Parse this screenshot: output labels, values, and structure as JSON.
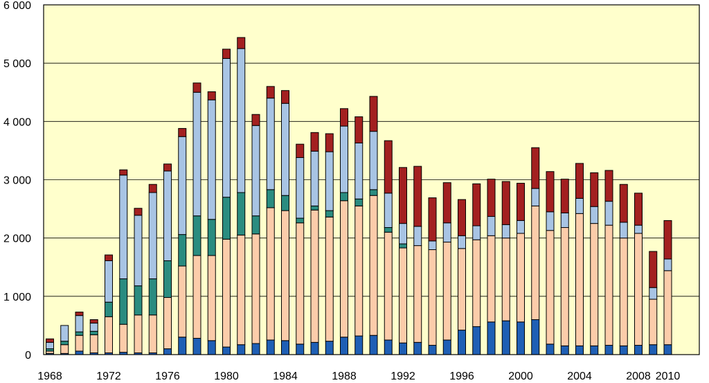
{
  "chart_data": {
    "type": "bar",
    "stacked": true,
    "title": "",
    "xlabel": "",
    "ylabel": "",
    "ylim": [
      0,
      6000
    ],
    "y_ticks": [
      0,
      1000,
      2000,
      3000,
      4000,
      5000,
      6000
    ],
    "y_tick_labels": [
      "0",
      "1 000",
      "2 000",
      "3 000",
      "4 000",
      "5 000",
      "6 000"
    ],
    "x_tick_labels": [
      "1968",
      "1972",
      "1976",
      "1980",
      "1984",
      "1988",
      "1992",
      "1996",
      "2000",
      "2004",
      "2008",
      "2010"
    ],
    "grid": true,
    "legend": "none",
    "plot_background": "#FFFFCC",
    "categories": [
      "1968",
      "1969",
      "1970",
      "1971",
      "1972",
      "1973",
      "1974",
      "1975",
      "1976",
      "1977",
      "1978",
      "1979",
      "1980",
      "1981",
      "1982",
      "1983",
      "1984",
      "1985",
      "1986",
      "1987",
      "1988",
      "1989",
      "1990",
      "1991",
      "1992",
      "1993",
      "1994",
      "1995",
      "1996",
      "1997",
      "1998",
      "1999",
      "2000",
      "2001",
      "2002",
      "2003",
      "2004",
      "2005",
      "2006",
      "2007",
      "2008",
      "2009",
      "2010"
    ],
    "series": [
      {
        "color": "#1F5FB5",
        "values": [
          20,
          20,
          60,
          30,
          30,
          40,
          30,
          30,
          100,
          300,
          280,
          240,
          130,
          170,
          190,
          250,
          240,
          180,
          210,
          230,
          300,
          320,
          330,
          250,
          200,
          210,
          160,
          250,
          420,
          480,
          560,
          580,
          560,
          600,
          180,
          150,
          150,
          150,
          160,
          150,
          160,
          170,
          170
        ]
      },
      {
        "color": "#FCCCAA",
        "values": [
          40,
          150,
          270,
          310,
          620,
          480,
          650,
          650,
          880,
          1220,
          1420,
          1460,
          1850,
          1880,
          1880,
          2270,
          2230,
          2080,
          2270,
          2130,
          2340,
          2230,
          2400,
          1850,
          1630,
          1660,
          1640,
          1680,
          1400,
          1490,
          1480,
          1420,
          1520,
          1950,
          1950,
          2030,
          2270,
          2100,
          2060,
          1850,
          1920,
          780,
          1270
        ]
      },
      {
        "color": "#2A8C80",
        "values": [
          40,
          60,
          60,
          60,
          250,
          780,
          500,
          620,
          630,
          540,
          680,
          620,
          720,
          730,
          310,
          310,
          260,
          80,
          70,
          110,
          140,
          120,
          100,
          80,
          70,
          0,
          0,
          0,
          0,
          0,
          0,
          0,
          0,
          0,
          0,
          0,
          0,
          0,
          0,
          0,
          0,
          0,
          0
        ]
      },
      {
        "color": "#A8C4E4",
        "values": [
          110,
          270,
          280,
          140,
          710,
          1780,
          1210,
          1480,
          1540,
          1680,
          2120,
          2050,
          2380,
          2470,
          1550,
          1570,
          1580,
          1040,
          940,
          1010,
          1140,
          960,
          1000,
          590,
          350,
          330,
          150,
          330,
          220,
          240,
          330,
          230,
          220,
          300,
          320,
          250,
          260,
          290,
          410,
          270,
          140,
          200,
          200
        ]
      },
      {
        "color": "#A32020",
        "values": [
          60,
          0,
          60,
          60,
          100,
          90,
          120,
          140,
          120,
          140,
          160,
          140,
          160,
          190,
          190,
          200,
          220,
          230,
          320,
          310,
          300,
          450,
          600,
          900,
          960,
          1030,
          740,
          690,
          620,
          720,
          640,
          740,
          640,
          700,
          690,
          580,
          600,
          580,
          530,
          650,
          550,
          620,
          660
        ]
      }
    ]
  }
}
